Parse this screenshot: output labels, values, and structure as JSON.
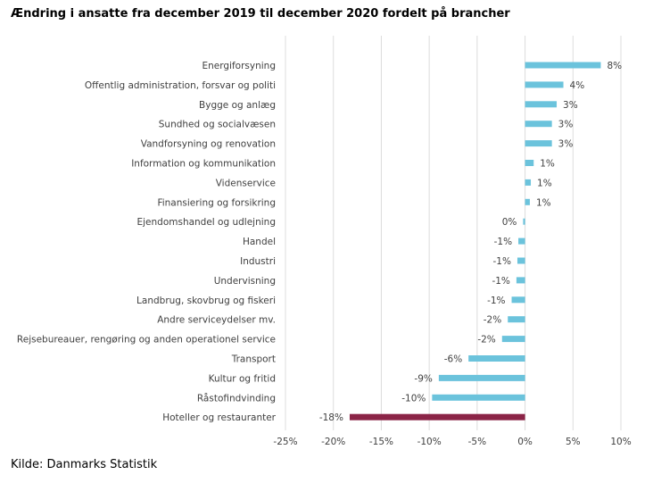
{
  "page": {
    "title": "Ændring i ansatte fra december 2019 til december 2020 fordelt på brancher",
    "source": "Kilde: Danmarks Statistik"
  },
  "colors": {
    "bar": "#6bc3dc",
    "highlight": "#8b2447",
    "grid": "#dcdcdc",
    "text": "#404040"
  },
  "chart_data": {
    "type": "bar",
    "orientation": "horizontal",
    "title": "",
    "xlabel": "",
    "ylabel": "",
    "xlim": [
      -25,
      10
    ],
    "xticks": [
      -25,
      -20,
      -15,
      -10,
      -5,
      0,
      5,
      10
    ],
    "xtick_labels": [
      "-25%",
      "-20%",
      "-15%",
      "-10%",
      "-5%",
      "0%",
      "5%",
      "10%"
    ],
    "grid": true,
    "categories": [
      "Energiforsyning",
      "Offentlig administration, forsvar og politi",
      "Bygge og anlæg",
      "Sundhed og socialvæsen",
      "Vandforsyning og renovation",
      "Information og kommunikation",
      "Videnservice",
      "Finansiering og forsikring",
      "Ejendomshandel og udlejning",
      "Handel",
      "Industri",
      "Undervisning",
      "Landbrug, skovbrug og fiskeri",
      "Andre serviceydelser mv.",
      "Rejsebureauer, rengøring og anden operationel service",
      "Transport",
      "Kultur og fritid",
      "Råstofindvinding",
      "Hoteller og restauranter"
    ],
    "values": [
      7.9,
      4.0,
      3.3,
      2.8,
      2.8,
      0.9,
      0.6,
      0.5,
      -0.2,
      -0.7,
      -0.8,
      -0.9,
      -1.4,
      -1.8,
      -2.4,
      -5.9,
      -9.0,
      -9.7,
      -18.3
    ],
    "data_labels": [
      "8%",
      "4%",
      "3%",
      "3%",
      "3%",
      "1%",
      "1%",
      "1%",
      "0%",
      "-1%",
      "-1%",
      "-1%",
      "-1%",
      "-2%",
      "-2%",
      "-6%",
      "-9%",
      "-10%",
      "-18%"
    ],
    "highlight_index": 18
  }
}
